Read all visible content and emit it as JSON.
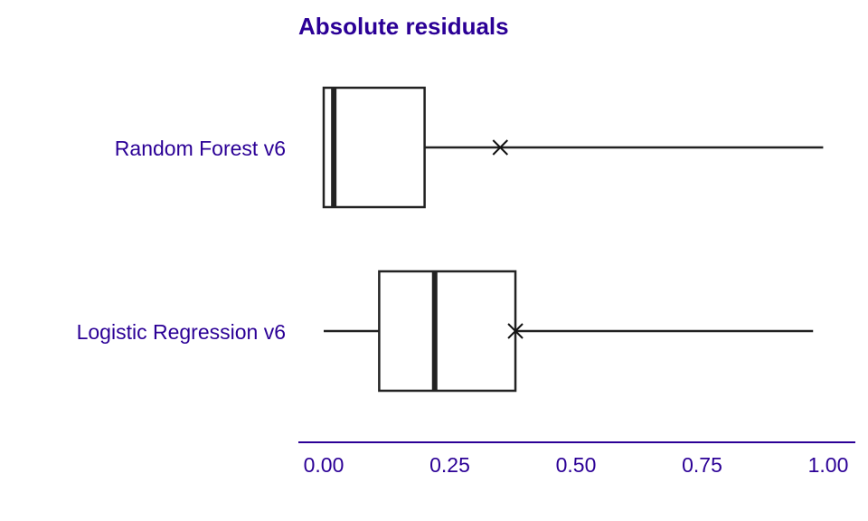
{
  "colors": {
    "text": "#2b0096",
    "box": "#222222",
    "axis": "#2b0096"
  },
  "chart_data": {
    "type": "boxplot",
    "title": "Absolute residuals",
    "xlabel": "",
    "ylabel": "",
    "xlim": [
      0.0,
      1.0
    ],
    "x_ticks": [
      0.0,
      0.25,
      0.5,
      0.75,
      1.0
    ],
    "x_tick_labels": [
      "0.00",
      "0.25",
      "0.50",
      "0.75",
      "1.00"
    ],
    "mean_marker": "x",
    "grid": false,
    "series": [
      {
        "name": "Random Forest v6",
        "whisker_low": 0.0,
        "q1": 0.0,
        "median": 0.02,
        "q3": 0.2,
        "whisker_high": 0.99,
        "mean": 0.35
      },
      {
        "name": "Logistic Regression v6",
        "whisker_low": 0.0,
        "q1": 0.11,
        "median": 0.22,
        "q3": 0.38,
        "whisker_high": 0.97,
        "mean": 0.38
      }
    ]
  }
}
